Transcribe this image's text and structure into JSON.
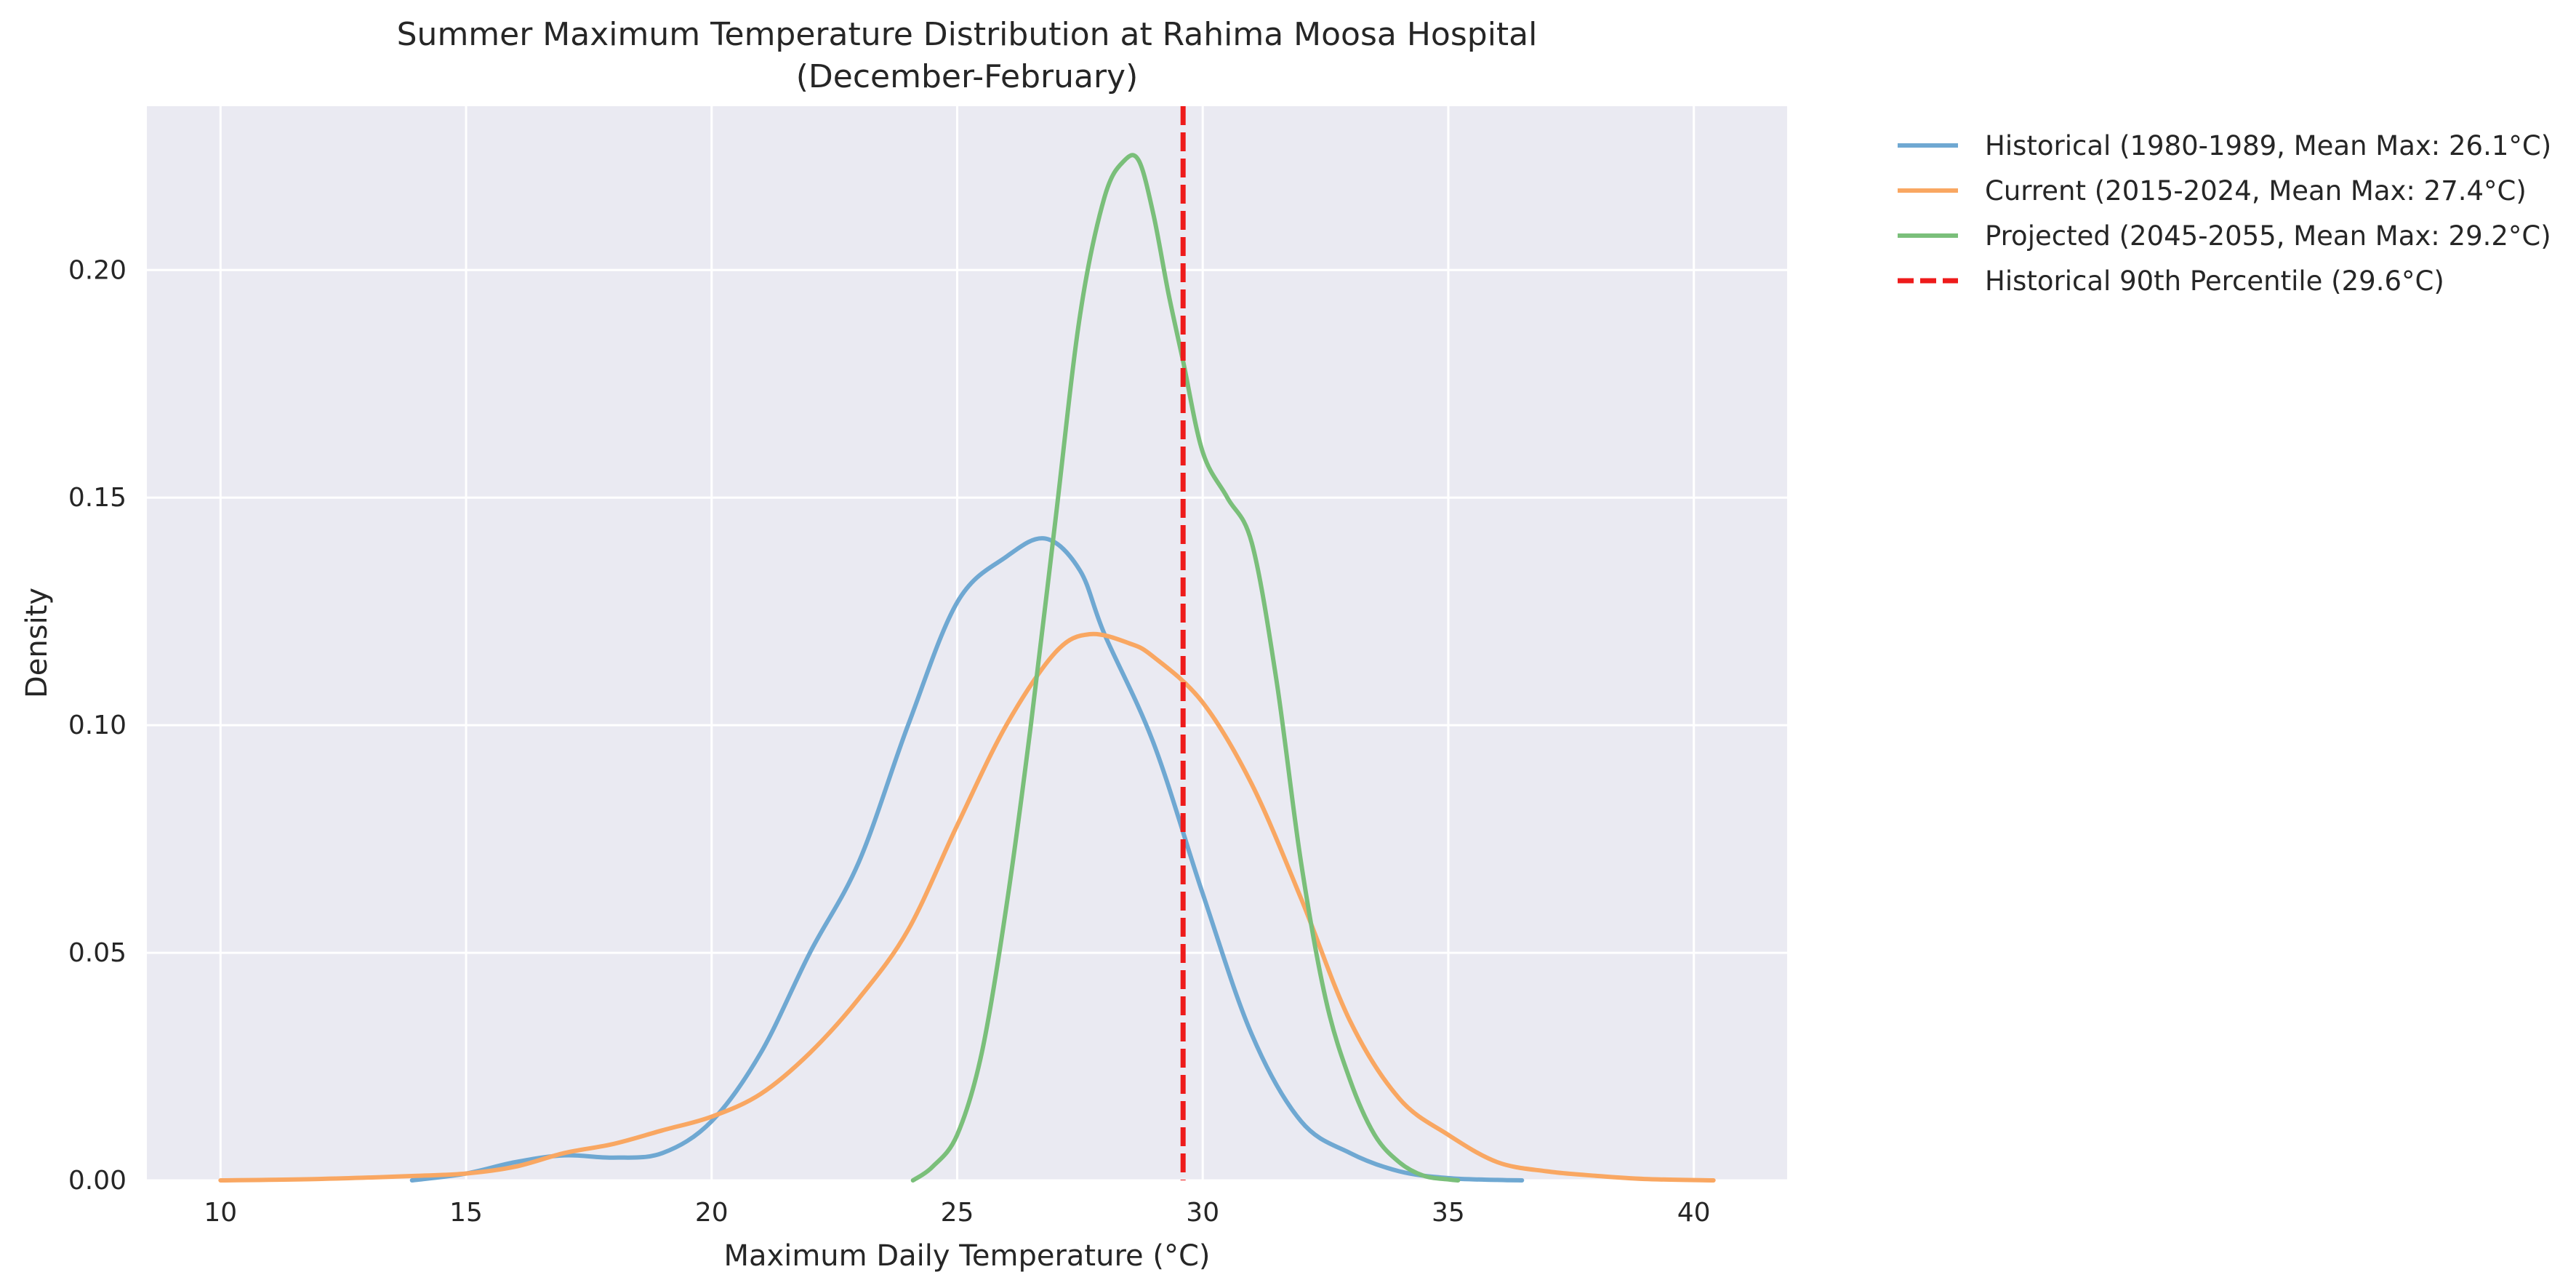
{
  "chart_data": {
    "type": "line",
    "title": "Summer Maximum Temperature Distribution at Rahima Moosa Hospital",
    "subtitle": "(December-February)",
    "xlabel": "Maximum Daily Temperature (°C)",
    "ylabel": "Density",
    "xlim": [
      8.5,
      41.9
    ],
    "ylim": [
      0,
      0.236
    ],
    "xticks": [
      10,
      15,
      20,
      25,
      30,
      35,
      40
    ],
    "xtick_labels": [
      "10",
      "15",
      "20",
      "25",
      "30",
      "35",
      "40"
    ],
    "yticks": [
      0.0,
      0.05,
      0.1,
      0.15,
      0.2
    ],
    "ytick_labels": [
      "0.00",
      "0.05",
      "0.10",
      "0.15",
      "0.20"
    ],
    "grid": true,
    "background": "#eaeaf2",
    "legend_placement": "outside-top-right",
    "series": [
      {
        "name": "Historical (1980-1989, Mean Max: 26.1°C)",
        "color": "#6fa8d2",
        "x": [
          13.9,
          15.0,
          16.0,
          17.0,
          18.0,
          19.0,
          20.0,
          21.0,
          22.0,
          23.0,
          24.0,
          25.0,
          26.0,
          26.8,
          27.5,
          28.0,
          29.0,
          30.0,
          31.0,
          32.0,
          33.0,
          34.0,
          35.0,
          36.0,
          36.5
        ],
        "y": [
          0.0,
          0.0015,
          0.004,
          0.0055,
          0.005,
          0.006,
          0.013,
          0.028,
          0.05,
          0.07,
          0.1,
          0.127,
          0.137,
          0.141,
          0.134,
          0.12,
          0.096,
          0.063,
          0.032,
          0.013,
          0.006,
          0.002,
          0.0005,
          0.0001,
          0.0
        ]
      },
      {
        "name": "Current (2015-2024, Mean Max: 27.4°C)",
        "color": "#f9a762",
        "x": [
          10.0,
          12.0,
          14.0,
          15.0,
          16.0,
          17.0,
          18.0,
          19.0,
          20.0,
          21.0,
          22.0,
          23.0,
          24.0,
          25.0,
          26.0,
          27.0,
          27.7,
          28.5,
          29.0,
          30.0,
          31.0,
          32.0,
          33.0,
          34.0,
          35.0,
          36.0,
          37.0,
          38.0,
          39.0,
          40.4
        ],
        "y": [
          0.0,
          0.0003,
          0.001,
          0.0015,
          0.003,
          0.006,
          0.008,
          0.011,
          0.014,
          0.019,
          0.028,
          0.04,
          0.055,
          0.078,
          0.1,
          0.116,
          0.12,
          0.118,
          0.115,
          0.105,
          0.087,
          0.062,
          0.035,
          0.018,
          0.01,
          0.004,
          0.002,
          0.001,
          0.0003,
          0.0
        ]
      },
      {
        "name": "Projected (2045-2055, Mean Max: 29.2°C)",
        "color": "#7abf7a",
        "x": [
          24.1,
          24.5,
          25.0,
          25.5,
          26.0,
          26.5,
          27.0,
          27.5,
          28.0,
          28.4,
          28.7,
          29.0,
          29.3,
          29.6,
          30.0,
          30.5,
          31.0,
          31.5,
          32.0,
          32.5,
          33.0,
          33.5,
          34.0,
          34.5,
          35.0,
          35.2
        ],
        "y": [
          0.0,
          0.003,
          0.01,
          0.028,
          0.06,
          0.1,
          0.145,
          0.19,
          0.216,
          0.224,
          0.224,
          0.212,
          0.195,
          0.18,
          0.16,
          0.15,
          0.14,
          0.11,
          0.07,
          0.04,
          0.022,
          0.01,
          0.004,
          0.001,
          0.0002,
          0.0
        ]
      }
    ],
    "reference_lines": [
      {
        "name": "Historical 90th Percentile (29.6°C)",
        "x": 29.6,
        "color": "#ee1b1b",
        "style": "dashed"
      }
    ]
  }
}
